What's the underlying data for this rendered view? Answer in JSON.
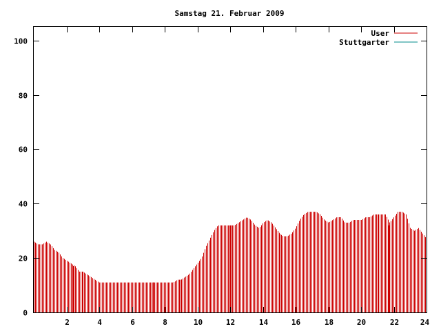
{
  "chart_data": {
    "type": "bar",
    "title": "Samstag 21. Februar 2009",
    "xlabel": "",
    "ylabel": "",
    "xlim": [
      0,
      24
    ],
    "ylim": [
      0,
      105
    ],
    "x_ticks": [
      2,
      4,
      6,
      8,
      10,
      12,
      14,
      16,
      18,
      20,
      22,
      24
    ],
    "x_tick_labels": [
      "2",
      "4",
      "6",
      "8",
      "10",
      "12",
      "14",
      "16",
      "18",
      "20",
      "22",
      "24"
    ],
    "y_ticks": [
      0,
      20,
      40,
      60,
      80,
      100
    ],
    "y_tick_labels": [
      "0",
      "20",
      "40",
      "60",
      "80",
      "100"
    ],
    "grid": false,
    "legend_position": "top-right",
    "colors": {
      "User": "#cc0000",
      "Stuttgarter": "#008b8b"
    },
    "series": [
      {
        "name": "User",
        "points": [
          [
            0.0,
            26
          ],
          [
            0.25,
            25
          ],
          [
            0.5,
            25
          ],
          [
            0.75,
            26
          ],
          [
            1.0,
            25
          ],
          [
            1.25,
            23
          ],
          [
            1.5,
            22
          ],
          [
            1.75,
            20
          ],
          [
            2.0,
            19
          ],
          [
            2.25,
            18
          ],
          [
            2.5,
            17
          ],
          [
            2.75,
            15
          ],
          [
            3.0,
            15
          ],
          [
            3.25,
            14
          ],
          [
            3.5,
            13
          ],
          [
            3.75,
            12
          ],
          [
            4.0,
            11
          ],
          [
            4.25,
            11
          ],
          [
            4.5,
            11
          ],
          [
            4.75,
            11
          ],
          [
            5.0,
            11
          ],
          [
            5.25,
            11
          ],
          [
            5.5,
            11
          ],
          [
            5.75,
            11
          ],
          [
            6.0,
            11
          ],
          [
            6.25,
            11
          ],
          [
            6.5,
            11
          ],
          [
            6.75,
            11
          ],
          [
            7.0,
            11
          ],
          [
            7.25,
            11
          ],
          [
            7.5,
            11
          ],
          [
            7.75,
            11
          ],
          [
            8.0,
            11
          ],
          [
            8.25,
            11
          ],
          [
            8.5,
            11
          ],
          [
            8.75,
            12
          ],
          [
            9.0,
            12
          ],
          [
            9.25,
            13
          ],
          [
            9.5,
            14
          ],
          [
            9.75,
            16
          ],
          [
            10.0,
            18
          ],
          [
            10.25,
            20
          ],
          [
            10.5,
            24
          ],
          [
            10.75,
            27
          ],
          [
            11.0,
            30
          ],
          [
            11.25,
            32
          ],
          [
            11.5,
            32
          ],
          [
            11.75,
            32
          ],
          [
            12.0,
            32
          ],
          [
            12.25,
            32
          ],
          [
            12.5,
            33
          ],
          [
            12.75,
            34
          ],
          [
            13.0,
            35
          ],
          [
            13.25,
            34
          ],
          [
            13.5,
            32
          ],
          [
            13.75,
            31
          ],
          [
            14.0,
            33
          ],
          [
            14.25,
            34
          ],
          [
            14.5,
            33
          ],
          [
            14.75,
            31
          ],
          [
            15.0,
            29
          ],
          [
            15.25,
            28
          ],
          [
            15.5,
            28
          ],
          [
            15.75,
            29
          ],
          [
            16.0,
            31
          ],
          [
            16.25,
            34
          ],
          [
            16.5,
            36
          ],
          [
            16.75,
            37
          ],
          [
            17.0,
            37
          ],
          [
            17.25,
            37
          ],
          [
            17.5,
            36
          ],
          [
            17.75,
            34
          ],
          [
            18.0,
            33
          ],
          [
            18.25,
            34
          ],
          [
            18.5,
            35
          ],
          [
            18.75,
            35
          ],
          [
            19.0,
            33
          ],
          [
            19.25,
            33
          ],
          [
            19.5,
            34
          ],
          [
            19.75,
            34
          ],
          [
            20.0,
            34
          ],
          [
            20.25,
            35
          ],
          [
            20.5,
            35
          ],
          [
            20.75,
            36
          ],
          [
            21.0,
            36
          ],
          [
            21.25,
            36
          ],
          [
            21.5,
            36
          ],
          [
            21.75,
            33
          ],
          [
            22.0,
            35
          ],
          [
            22.25,
            37
          ],
          [
            22.5,
            37
          ],
          [
            22.75,
            36
          ],
          [
            23.0,
            31
          ],
          [
            23.25,
            30
          ],
          [
            23.5,
            31
          ],
          [
            23.75,
            29
          ],
          [
            24.0,
            27
          ]
        ],
        "highlight_points": [
          [
            2.4,
            17
          ],
          [
            7.3,
            11
          ],
          [
            12.0,
            32
          ],
          [
            21.7,
            32
          ]
        ]
      },
      {
        "name": "Stuttgarter",
        "points": []
      }
    ]
  }
}
